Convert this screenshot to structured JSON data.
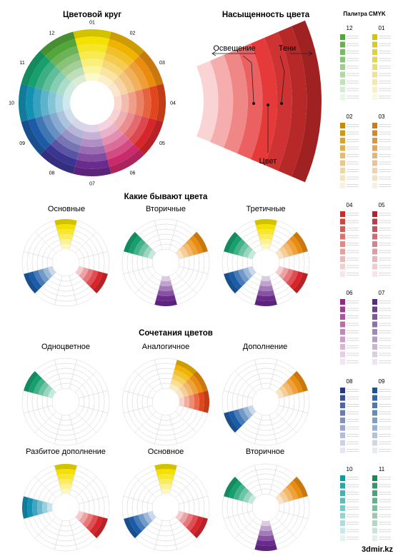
{
  "titles": {
    "color_wheel": "Цветовой круг",
    "saturation": "Насыщенность цвета",
    "what_colors": "Какие бывают цвета",
    "combinations": "Сочетания цветов",
    "palette": "Палитра  CMYK"
  },
  "saturation_labels": {
    "tints": "Освещение",
    "shades": "Тени",
    "color": "Цвет"
  },
  "wheel": {
    "numbers": [
      "01",
      "02",
      "03",
      "04",
      "05",
      "06",
      "07",
      "08",
      "09",
      "10",
      "11",
      "12"
    ],
    "hues": [
      "#f5e100",
      "#f0b400",
      "#ea8c10",
      "#e2461c",
      "#d6262c",
      "#c92a6c",
      "#6a2a8e",
      "#3b3592",
      "#1c5ca6",
      "#1390b2",
      "#17a06e",
      "#52a63a"
    ]
  },
  "kinds": [
    {
      "label": "Основные",
      "hues": [
        0,
        4,
        8
      ]
    },
    {
      "label": "Вторичные",
      "hues": [
        2,
        6,
        10
      ]
    },
    {
      "label": "Третичные",
      "hues": [
        0,
        2,
        4,
        6,
        8,
        10
      ]
    }
  ],
  "combos": [
    {
      "label": "Одноцветное",
      "hues": [
        10
      ]
    },
    {
      "label": "Аналогичное",
      "hues": [
        1,
        2,
        3
      ]
    },
    {
      "label": "Дополнение",
      "hues": [
        2,
        8
      ]
    },
    {
      "label": "Разбитое дополнение",
      "hues": [
        0,
        4,
        9
      ]
    },
    {
      "label": "Основное",
      "hues": [
        0,
        4,
        8
      ]
    },
    {
      "label": "Вторичное",
      "hues": [
        2,
        6,
        10
      ]
    }
  ],
  "palette": [
    {
      "num": "12",
      "color": "#52a63a"
    },
    {
      "num": "01",
      "color": "#d6c400"
    },
    {
      "num": "02",
      "color": "#c88a00"
    },
    {
      "num": "03",
      "color": "#d07a10"
    },
    {
      "num": "04",
      "color": "#c4302a"
    },
    {
      "num": "05",
      "color": "#b82230"
    },
    {
      "num": "06",
      "color": "#8e2a80"
    },
    {
      "num": "07",
      "color": "#5a2a7e"
    },
    {
      "num": "08",
      "color": "#243a86"
    },
    {
      "num": "09",
      "color": "#17559a"
    },
    {
      "num": "10",
      "color": "#139a9a"
    },
    {
      "num": "11",
      "color": "#178a5a"
    }
  ],
  "credit": "3dmir.kz"
}
